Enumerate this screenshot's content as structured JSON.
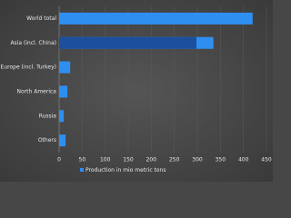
{
  "chart_data": {
    "type": "hbar",
    "categories": [
      "World total",
      "Asia (incl. China)",
      "Europe (incl. Turkey)",
      "North America",
      "Russia",
      "Others"
    ],
    "series": [
      {
        "name": "Production in mio metric tons",
        "color": "#2f8ff0",
        "values": [
          420,
          335,
          24,
          18,
          10,
          14
        ]
      },
      {
        "color": "#1c4f9c",
        "values": [
          null,
          298,
          null,
          null,
          null,
          null
        ]
      }
    ],
    "xlim": [
      0,
      450
    ],
    "xticks": [
      0,
      50,
      100,
      150,
      200,
      250,
      300,
      350,
      400,
      450
    ],
    "grid": true
  }
}
